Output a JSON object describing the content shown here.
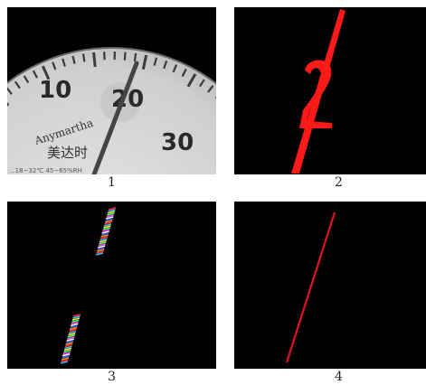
{
  "panels": [
    {
      "caption": "1",
      "content": "gauge-photo",
      "gauge": {
        "dial_numbers": [
          "10",
          "20",
          "30"
        ],
        "brand": "Anymartha",
        "brand_cn": "美达时",
        "spec_text": "...18~32℃ 45~65%RH"
      }
    },
    {
      "caption": "2",
      "content": "red-needle-and-digit-mask"
    },
    {
      "caption": "3",
      "content": "colored-edge-segments"
    },
    {
      "caption": "4",
      "content": "detected-red-line"
    }
  ],
  "colors": {
    "background": "#000000",
    "mask_red": "#ff1a1a",
    "line_red": "#e0141e",
    "dial_face": "#d2d2d2"
  }
}
